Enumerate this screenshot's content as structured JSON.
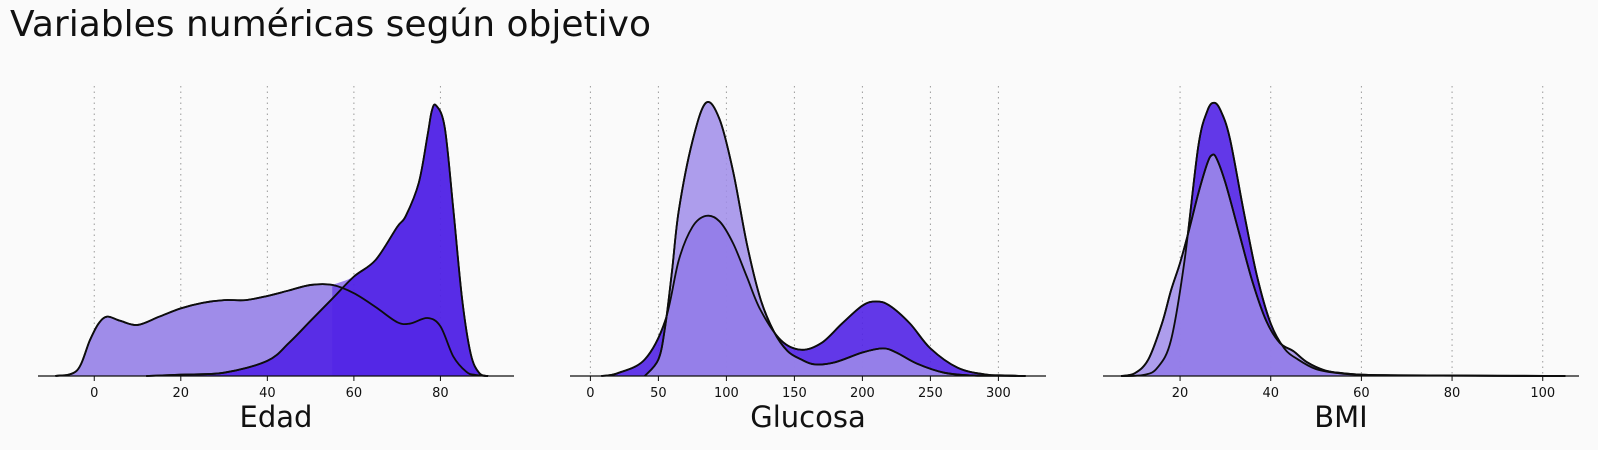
{
  "title": "Variables numéricas según objetivo",
  "colors": {
    "stroke": "#0d0d0d",
    "grid": "#9a9a9a",
    "background": "#fafafa"
  },
  "chart_data": [
    {
      "type": "area",
      "xlabel": "Edad",
      "xlim": [
        -13,
        97
      ],
      "ticks": [
        0,
        20,
        40,
        60,
        80
      ],
      "ylim": [
        0,
        1
      ],
      "grid": true,
      "series": [
        {
          "fill": "#9f8ce9",
          "opacity": 1,
          "x": [
            -9,
            -4,
            -1,
            1,
            3,
            6,
            10,
            15,
            20,
            25,
            30,
            35,
            40,
            45,
            50,
            55,
            60,
            65,
            70,
            73,
            77,
            80,
            83,
            86,
            88,
            91
          ],
          "y": [
            0,
            0.02,
            0.13,
            0.19,
            0.215,
            0.2,
            0.185,
            0.215,
            0.245,
            0.265,
            0.275,
            0.275,
            0.29,
            0.31,
            0.33,
            0.33,
            0.3,
            0.25,
            0.195,
            0.19,
            0.21,
            0.18,
            0.07,
            0.015,
            0.004,
            0
          ]
        },
        {
          "fill": "#5122e6",
          "opacity": 0.9,
          "x": [
            12,
            20,
            30,
            40,
            45,
            50,
            55,
            60,
            65,
            70,
            72,
            75,
            77,
            78,
            79,
            81,
            83,
            85,
            87,
            89,
            91
          ],
          "y": [
            0,
            0.005,
            0.012,
            0.055,
            0.12,
            0.2,
            0.28,
            0.36,
            0.42,
            0.54,
            0.58,
            0.7,
            0.87,
            0.96,
            0.98,
            0.9,
            0.6,
            0.28,
            0.08,
            0.01,
            0
          ],
          "dark_x": [
            55,
            60,
            65,
            70,
            72,
            75,
            77,
            78,
            79,
            81,
            83,
            85,
            87,
            89,
            91
          ],
          "dark_y": [
            0.33,
            0.36,
            0.42,
            0.54,
            0.58,
            0.7,
            0.87,
            0.96,
            0.98,
            0.9,
            0.6,
            0.28,
            0.08,
            0.01,
            0
          ]
        }
      ]
    },
    {
      "type": "area",
      "xlabel": "Glucosa",
      "xlim": [
        -15,
        335
      ],
      "ticks": [
        0,
        50,
        100,
        150,
        200,
        250,
        300
      ],
      "ylim": [
        0,
        1
      ],
      "grid": true,
      "series": [
        {
          "fill": "#5122e6",
          "opacity": 0.9,
          "x": [
            8,
            20,
            40,
            55,
            65,
            75,
            85,
            95,
            105,
            115,
            125,
            140,
            155,
            170,
            185,
            200,
            210,
            220,
            235,
            250,
            270,
            290,
            305,
            320
          ],
          "y": [
            0,
            0.01,
            0.06,
            0.2,
            0.42,
            0.54,
            0.58,
            0.56,
            0.48,
            0.36,
            0.24,
            0.13,
            0.095,
            0.12,
            0.19,
            0.255,
            0.27,
            0.255,
            0.19,
            0.1,
            0.03,
            0.006,
            0.002,
            0
          ]
        },
        {
          "fill": "#9f8ce9",
          "opacity": 0.85,
          "x": [
            40,
            50,
            55,
            60,
            65,
            75,
            85,
            95,
            105,
            115,
            125,
            135,
            145,
            155,
            165,
            180,
            200,
            215,
            225,
            240,
            260,
            280,
            300,
            320
          ],
          "y": [
            0,
            0.06,
            0.18,
            0.38,
            0.6,
            0.85,
            0.99,
            0.93,
            0.74,
            0.48,
            0.28,
            0.16,
            0.09,
            0.06,
            0.042,
            0.05,
            0.085,
            0.1,
            0.085,
            0.045,
            0.012,
            0.002,
            0.001,
            0
          ]
        }
      ]
    },
    {
      "type": "area",
      "xlabel": "BMI",
      "xlim": [
        3,
        108
      ],
      "ticks": [
        20,
        40,
        60,
        80,
        100
      ],
      "ylim": [
        0,
        1
      ],
      "grid": true,
      "series": [
        {
          "fill": "#5122e6",
          "opacity": 0.9,
          "x": [
            7,
            12,
            15,
            18,
            21,
            24,
            26,
            27.5,
            29,
            31,
            34,
            37,
            40,
            43,
            46,
            50,
            55,
            60,
            70,
            85,
            105
          ],
          "y": [
            0,
            0.004,
            0.03,
            0.13,
            0.42,
            0.83,
            0.96,
            0.99,
            0.96,
            0.86,
            0.6,
            0.36,
            0.19,
            0.1,
            0.06,
            0.025,
            0.01,
            0.004,
            0.002,
            0.001,
            0
          ]
        },
        {
          "fill": "#9f8ce9",
          "opacity": 0.85,
          "x": [
            7,
            10,
            13,
            16,
            18,
            20,
            22,
            24,
            26,
            27,
            28,
            30,
            33,
            36,
            39,
            42,
            45,
            48,
            52,
            56,
            60,
            65,
            75,
            90,
            105
          ],
          "y": [
            0,
            0.01,
            0.06,
            0.19,
            0.31,
            0.41,
            0.53,
            0.66,
            0.77,
            0.8,
            0.79,
            0.7,
            0.52,
            0.34,
            0.2,
            0.12,
            0.09,
            0.05,
            0.02,
            0.01,
            0.005,
            0.003,
            0.002,
            0.001,
            0
          ]
        }
      ]
    }
  ]
}
